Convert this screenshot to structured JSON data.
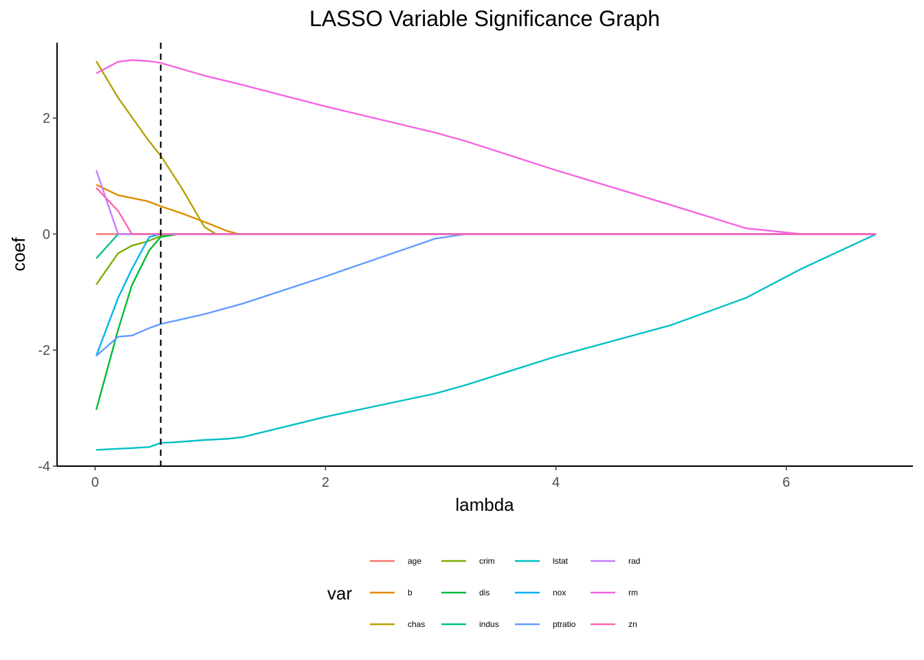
{
  "chart_data": {
    "type": "line",
    "title": "LASSO Variable Significance Graph",
    "xlabel": "lambda",
    "ylabel": "coef",
    "xlim": [
      -0.33,
      7.1
    ],
    "ylim": [
      -4.0,
      3.3
    ],
    "xticks": [
      "0",
      "2",
      "4",
      "6"
    ],
    "yticks": [
      "-4",
      "-2",
      "0",
      "2"
    ],
    "xtick_values": [
      0,
      2,
      4,
      6
    ],
    "ytick_values": [
      -4,
      -2,
      0,
      2
    ],
    "vline": 0.57,
    "grid": false,
    "legend_title": "var",
    "legend_position": "bottom",
    "series": [
      {
        "name": "age",
        "color": "#F8766D",
        "x": [
          0.01,
          6.78
        ],
        "values": [
          0,
          0
        ]
      },
      {
        "name": "b",
        "color": "#DE8C00",
        "x": [
          0.01,
          0.2,
          0.45,
          0.57,
          0.75,
          1.0,
          1.15,
          1.25,
          6.78
        ],
        "values": [
          0.85,
          0.67,
          0.57,
          0.48,
          0.36,
          0.17,
          0.05,
          0.0,
          0.0
        ]
      },
      {
        "name": "chas",
        "color": "#B79F00",
        "x": [
          0.01,
          0.2,
          0.45,
          0.57,
          0.75,
          0.95,
          1.05,
          6.78
        ],
        "values": [
          2.98,
          2.35,
          1.65,
          1.35,
          0.8,
          0.12,
          0.0,
          0.0
        ]
      },
      {
        "name": "crim",
        "color": "#7CAE00",
        "x": [
          0.01,
          0.2,
          0.32,
          0.45,
          0.55,
          0.68,
          6.78
        ],
        "values": [
          -0.87,
          -0.33,
          -0.2,
          -0.13,
          -0.05,
          0.0,
          0.0
        ]
      },
      {
        "name": "dis",
        "color": "#00BA38",
        "x": [
          0.01,
          0.2,
          0.32,
          0.47,
          0.57,
          0.72,
          6.78
        ],
        "values": [
          -3.03,
          -1.65,
          -0.88,
          -0.28,
          -0.05,
          0.0,
          0.0
        ]
      },
      {
        "name": "indus",
        "color": "#00C08B",
        "x": [
          0.01,
          0.2,
          6.78
        ],
        "values": [
          -0.42,
          0.0,
          0.0
        ]
      },
      {
        "name": "lstat",
        "color": "#00BFC4",
        "x": [
          0.01,
          0.2,
          0.32,
          0.47,
          0.57,
          0.68,
          0.95,
          1.15,
          1.28,
          2.0,
          2.95,
          3.22,
          4.0,
          5.0,
          5.65,
          6.13,
          6.78
        ],
        "values": [
          -3.72,
          -3.7,
          -3.69,
          -3.67,
          -3.6,
          -3.59,
          -3.55,
          -3.53,
          -3.5,
          -3.15,
          -2.75,
          -2.6,
          -2.11,
          -1.57,
          -1.1,
          -0.6,
          0.0
        ]
      },
      {
        "name": "nox",
        "color": "#00B4F0",
        "x": [
          0.01,
          0.2,
          0.32,
          0.47,
          0.57,
          6.78
        ],
        "values": [
          -2.1,
          -1.1,
          -0.6,
          -0.05,
          0.0,
          0.0
        ]
      },
      {
        "name": "ptratio",
        "color": "#619CFF",
        "x": [
          0.01,
          0.2,
          0.32,
          0.47,
          0.57,
          0.95,
          1.28,
          2.0,
          2.95,
          3.22,
          6.78
        ],
        "values": [
          -2.1,
          -1.77,
          -1.75,
          -1.62,
          -1.55,
          -1.38,
          -1.2,
          -0.73,
          -0.08,
          0.0,
          0.0
        ]
      },
      {
        "name": "rad",
        "color": "#C77CFF",
        "x": [
          0.01,
          0.2,
          6.78
        ],
        "values": [
          1.1,
          0.0,
          0.0
        ]
      },
      {
        "name": "rm",
        "color": "#F564E3",
        "x": [
          0.01,
          0.2,
          0.32,
          0.47,
          0.57,
          0.95,
          1.28,
          2.0,
          2.95,
          3.22,
          4.0,
          5.0,
          5.65,
          6.13,
          6.78
        ],
        "values": [
          2.77,
          2.97,
          3.0,
          2.98,
          2.95,
          2.73,
          2.57,
          2.2,
          1.75,
          1.6,
          1.1,
          0.5,
          0.1,
          0.0,
          0.0
        ]
      },
      {
        "name": "zn",
        "color": "#FF64B0",
        "x": [
          0.01,
          0.2,
          0.32,
          6.78
        ],
        "values": [
          0.8,
          0.4,
          0.0,
          0.0
        ]
      }
    ]
  }
}
